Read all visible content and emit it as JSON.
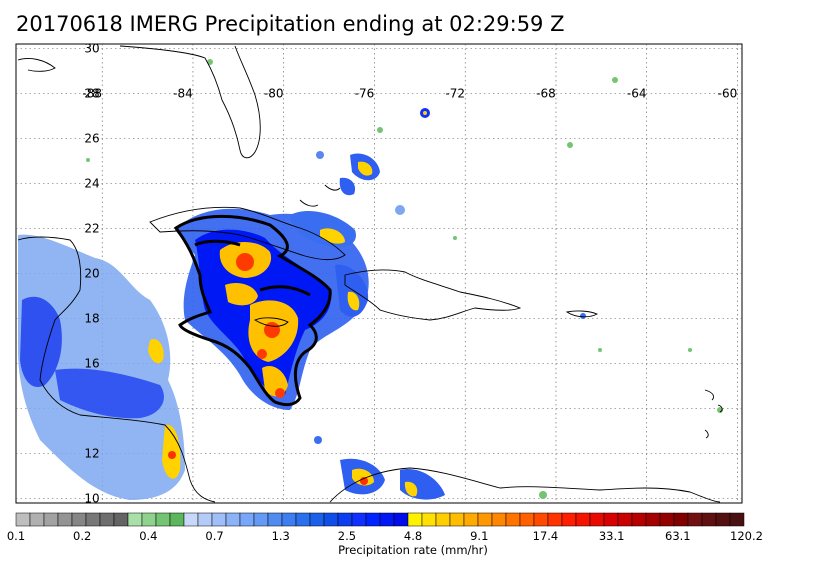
{
  "title": "20170618 IMERG Precipitation ending at 02:29:59 Z",
  "map": {
    "lon_labels": [
      "-88",
      "-84",
      "-80",
      "-76",
      "-72",
      "-68",
      "-64",
      "-60"
    ],
    "lat_labels": [
      "30",
      "28",
      "26",
      "24",
      "22",
      "20",
      "18",
      "16",
      "12",
      "10"
    ],
    "lat_values": [
      30,
      28,
      26,
      24,
      22,
      20,
      18,
      16,
      12,
      10
    ],
    "lon_values": [
      -88,
      -84,
      -80,
      -76,
      -72,
      -68,
      -64,
      -60
    ],
    "extent": {
      "lon": [
        -91.8,
        -59.8
      ],
      "lat": [
        9.8,
        30.2
      ]
    }
  },
  "colorbar": {
    "title": "Precipitation rate (mm/hr)",
    "tick_labels": [
      "0.1",
      "0.2",
      "0.4",
      "0.7",
      "1.3",
      "2.5",
      "4.8",
      "9.1",
      "17.4",
      "33.1",
      "63.1",
      "120.2"
    ],
    "colors": [
      "#bebebe",
      "#b0b0b0",
      "#a2a2a2",
      "#949494",
      "#868686",
      "#787878",
      "#6e6e6e",
      "#646464",
      "#a8e0a8",
      "#8ed28e",
      "#74c474",
      "#5cb65c",
      "#c8d8f8",
      "#b4cbf8",
      "#a0bef8",
      "#8cb2f8",
      "#78a6f8",
      "#649af4",
      "#508cf0",
      "#3c7ef0",
      "#2a70ec",
      "#1a60e8",
      "#0f4fe8",
      "#0a3ef0",
      "#1030ff",
      "#0024ff",
      "#0018f4",
      "#000cea",
      "#fff200",
      "#ffe000",
      "#ffce00",
      "#ffbc00",
      "#ffaa00",
      "#ff9800",
      "#ff8600",
      "#ff7400",
      "#ff6000",
      "#ff4a00",
      "#ff3400",
      "#ff1e00",
      "#f51400",
      "#e80a00",
      "#d80000",
      "#c80000",
      "#b60000",
      "#a40000",
      "#920000",
      "#800000",
      "#701010",
      "#601010",
      "#541010",
      "#481010"
    ]
  }
}
